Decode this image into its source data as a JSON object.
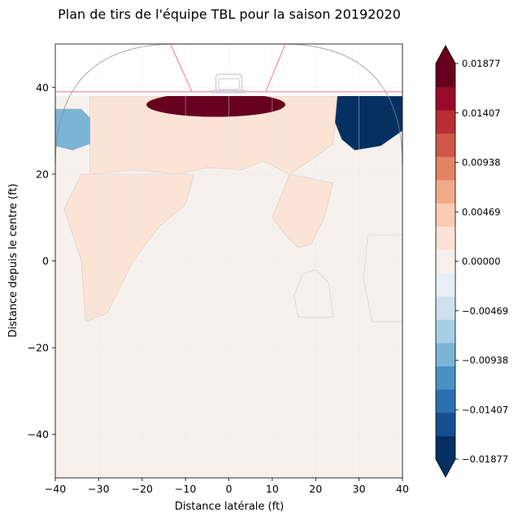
{
  "chart_data": {
    "type": "heatmap",
    "title": "Plan de tirs de l'équipe TBL pour la saison 20192020",
    "xlabel": "Distance latérale (ft)",
    "ylabel": "Distance depuis le centre (ft)",
    "xlim": [
      -40,
      40
    ],
    "ylim": [
      -50,
      50
    ],
    "xticks": [
      -40,
      -30,
      -20,
      -10,
      0,
      10,
      20,
      30,
      40
    ],
    "yticks": [
      -40,
      -20,
      0,
      20,
      40
    ],
    "grid": true,
    "colormap": "RdBu_r",
    "colorbar": {
      "min": -0.01877,
      "max": 0.01877,
      "levels": 20,
      "ticks": [
        "0.01877",
        "0.01407",
        "0.00938",
        "0.00469",
        "0.00000",
        "−0.00469",
        "−0.00938",
        "−0.01407",
        "−0.01877"
      ],
      "extend": "both"
    },
    "colors": [
      "#053061",
      "#154f8f",
      "#2c6fb0",
      "#4a91c3",
      "#7bb5d6",
      "#a7cfe4",
      "#cde2ee",
      "#e7f0f4",
      "#f7f1ee",
      "#fbe4d6",
      "#f9ccb3",
      "#f1aa88",
      "#e38364",
      "#cf5747",
      "#b72f33",
      "#970b29",
      "#67001f"
    ],
    "regions": [
      {
        "name": "crease-hot",
        "value": 0.0187,
        "polygon": [
          [
            -21,
            38
          ],
          [
            21,
            38
          ],
          [
            20,
            34.5
          ],
          [
            15,
            31.5
          ],
          [
            8,
            30
          ],
          [
            0,
            29.5
          ],
          [
            -8,
            30
          ],
          [
            -15,
            31.5
          ],
          [
            -20,
            34
          ]
        ]
      },
      {
        "name": "right-cold",
        "value": -0.0187,
        "polygon": [
          [
            23,
            38
          ],
          [
            40,
            38
          ],
          [
            40,
            30
          ],
          [
            35,
            26.5
          ],
          [
            29,
            25.5
          ],
          [
            26,
            28
          ],
          [
            24,
            33
          ]
        ]
      },
      {
        "name": "left-cold",
        "value": -0.0094,
        "polygon": [
          [
            -40,
            35
          ],
          [
            -34,
            35
          ],
          [
            -31,
            32
          ],
          [
            -32,
            27
          ],
          [
            -36,
            25.5
          ],
          [
            -40,
            26.5
          ]
        ]
      },
      {
        "name": "slot-warm",
        "value": 0.0015,
        "polygon": [
          [
            -32,
            38
          ],
          [
            25,
            38
          ],
          [
            24,
            27
          ],
          [
            20,
            24
          ],
          [
            14,
            20
          ],
          [
            8,
            23
          ],
          [
            3,
            21
          ],
          [
            -5,
            21.5
          ],
          [
            -12,
            20
          ],
          [
            -22,
            21
          ],
          [
            -32,
            20
          ]
        ]
      },
      {
        "name": "left-warm-lobe",
        "value": 0.0012,
        "polygon": [
          [
            -34,
            20
          ],
          [
            -8,
            20
          ],
          [
            -10,
            13
          ],
          [
            -16,
            8
          ],
          [
            -22,
            0
          ],
          [
            -28,
            -12
          ],
          [
            -33,
            -14
          ],
          [
            -34,
            0
          ],
          [
            -38,
            12
          ]
        ]
      },
      {
        "name": "right-warm-lobe",
        "value": 0.0012,
        "polygon": [
          [
            14,
            20
          ],
          [
            24,
            18
          ],
          [
            22,
            10
          ],
          [
            19,
            4
          ],
          [
            16,
            3
          ],
          [
            13,
            6
          ],
          [
            10,
            10
          ]
        ]
      },
      {
        "name": "lower-right-warm",
        "value": 0.001,
        "polygon": [
          [
            16,
            -13
          ],
          [
            24,
            -13
          ],
          [
            23,
            -5
          ],
          [
            20,
            -2
          ],
          [
            17,
            -3
          ],
          [
            15,
            -8
          ]
        ]
      },
      {
        "name": "far-right-warm",
        "value": 0.001,
        "polygon": [
          [
            32,
            6
          ],
          [
            40,
            6
          ],
          [
            40,
            -14
          ],
          [
            33,
            -14
          ],
          [
            31,
            -4
          ]
        ]
      }
    ]
  }
}
